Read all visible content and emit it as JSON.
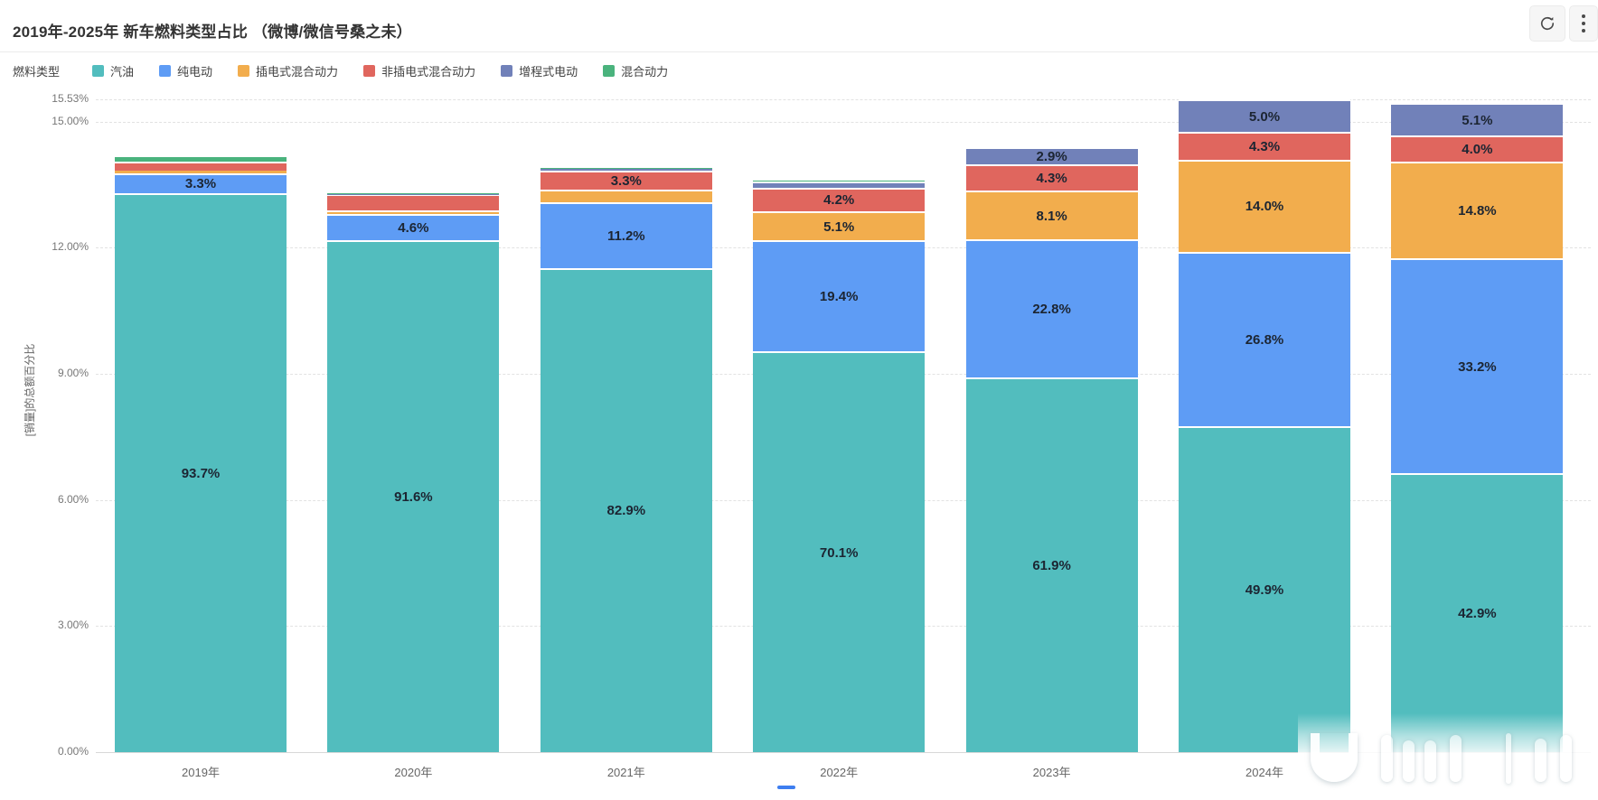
{
  "header": {
    "title": "2019年-2025年 新车燃料类型占比 （微博/微信号桑之未）"
  },
  "legend": {
    "title": "燃料类型",
    "items": [
      {
        "label": "汽油",
        "color": "#52bdbe"
      },
      {
        "label": "纯电动",
        "color": "#5e9cf5"
      },
      {
        "label": "插电式混合动力",
        "color": "#f2ad4d"
      },
      {
        "label": "非插电式混合动力",
        "color": "#e0665e"
      },
      {
        "label": "增程式电动",
        "color": "#7181b9"
      },
      {
        "label": "混合动力",
        "color": "#4ab37d"
      }
    ]
  },
  "chart_data": {
    "type": "bar",
    "stacked": true,
    "title": "2019年-2025年 新车燃料类型占比 （微博/微信号桑之未）",
    "ylabel": "[销量]的总额百分比",
    "legend_position": "top",
    "grid": "dashed-horizontal",
    "ylim": [
      0,
      15.53
    ],
    "yticks": [
      {
        "label": "0.00%",
        "value": 0
      },
      {
        "label": "3.00%",
        "value": 3
      },
      {
        "label": "6.00%",
        "value": 6
      },
      {
        "label": "9.00%",
        "value": 9
      },
      {
        "label": "12.00%",
        "value": 12
      },
      {
        "label": "15.00%",
        "value": 15
      },
      {
        "label": "15.53%",
        "value": 15.53
      }
    ],
    "categories": [
      "2019年",
      "2020年",
      "2021年",
      "2022年",
      "2023年",
      "2024年",
      ""
    ],
    "column_totals_axis_pct": [
      14.2,
      13.3,
      13.9,
      13.6,
      14.4,
      15.53,
      15.45
    ],
    "series": [
      {
        "name": "汽油",
        "color": "#52bdbe",
        "values": [
          93.7,
          91.6,
          82.9,
          70.1,
          61.9,
          49.9,
          42.9
        ],
        "labels": [
          "93.7%",
          "91.6%",
          "82.9%",
          "70.1%",
          "61.9%",
          "49.9%",
          "42.9%"
        ]
      },
      {
        "name": "纯电动",
        "color": "#5e9cf5",
        "values": [
          3.3,
          4.6,
          11.2,
          19.4,
          22.8,
          26.8,
          33.2
        ],
        "labels": [
          "3.3%",
          "4.6%",
          "11.2%",
          "19.4%",
          "22.8%",
          "26.8%",
          "33.2%"
        ]
      },
      {
        "name": "插电式混合动力",
        "color": "#f2ad4d",
        "values": [
          0.4,
          0.7,
          2.2,
          5.1,
          8.1,
          14.0,
          14.8
        ],
        "labels": [
          "",
          "",
          "",
          "5.1%",
          "8.1%",
          "14.0%",
          "14.8%"
        ]
      },
      {
        "name": "非插电式混合动力",
        "color": "#e0665e",
        "values": [
          1.5,
          2.9,
          3.3,
          4.2,
          4.3,
          4.3,
          4.0
        ],
        "labels": [
          "",
          "",
          "3.3%",
          "4.2%",
          "4.3%",
          "4.3%",
          "4.0%"
        ]
      },
      {
        "name": "增程式电动",
        "color": "#7181b9",
        "values": [
          0.0,
          0.1,
          0.3,
          1.1,
          2.9,
          5.0,
          5.1
        ],
        "labels": [
          "",
          "",
          "",
          "",
          "2.9%",
          "5.0%",
          "5.1%"
        ]
      },
      {
        "name": "混合动力",
        "color": "#4ab37d",
        "values": [
          1.1,
          0.1,
          0.1,
          0.1,
          0.0,
          0.0,
          0.0
        ],
        "labels": [
          "",
          "",
          "",
          "",
          "",
          "",
          ""
        ]
      }
    ]
  }
}
